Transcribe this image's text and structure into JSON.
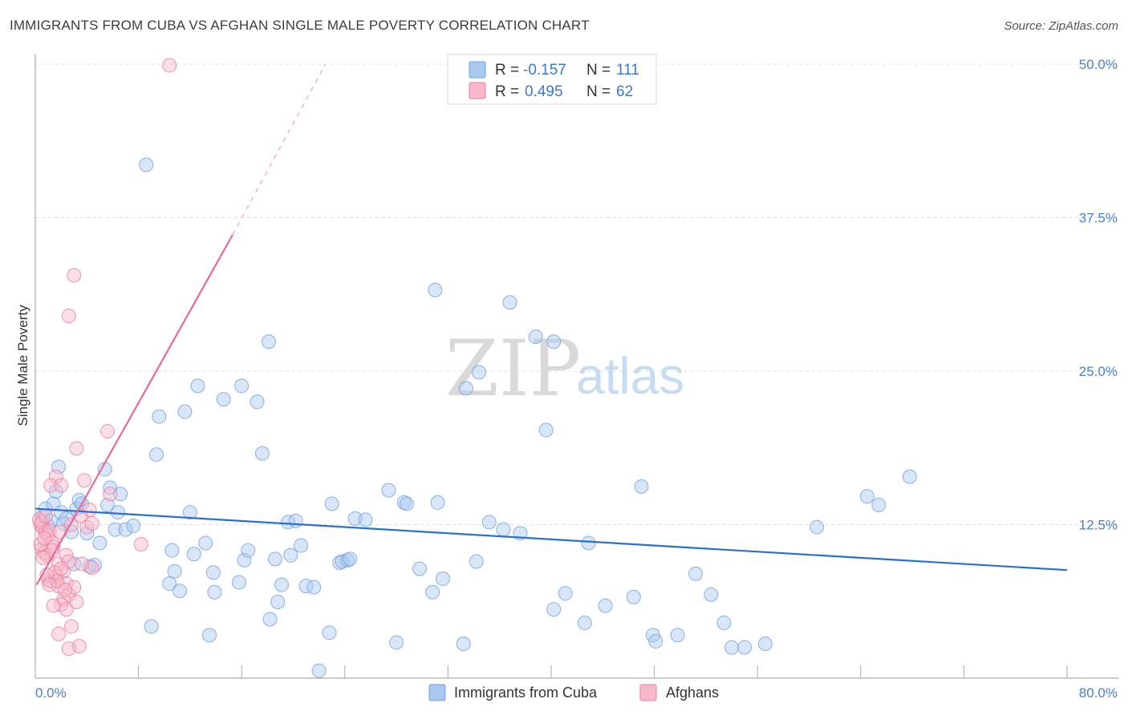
{
  "header": {
    "title": "IMMIGRANTS FROM CUBA VS AFGHAN SINGLE MALE POVERTY CORRELATION CHART",
    "source": "Source: ZipAtlas.com"
  },
  "watermark": {
    "zip": "ZIP",
    "atlas": "atlas"
  },
  "legend": {
    "r_label": "R =",
    "n_label": "N =",
    "rows": [
      {
        "r": "-0.157",
        "n": "111",
        "color": "#a9c8f0"
      },
      {
        "r": "0.495",
        "n": "62",
        "color": "#f7b9ca"
      }
    ]
  },
  "bottom_legend": {
    "items": [
      {
        "label": "Immigrants from Cuba",
        "color": "#a9c8f0"
      },
      {
        "label": "Afghans",
        "color": "#f7b9ca"
      }
    ]
  },
  "chart_data": {
    "type": "scatter",
    "title": "IMMIGRANTS FROM CUBA VS AFGHAN SINGLE MALE POVERTY CORRELATION CHART",
    "xlabel": "",
    "ylabel": "Single Male Poverty",
    "xlim": [
      0,
      80
    ],
    "ylim": [
      0,
      50
    ],
    "x_tick_labels": [
      "0.0%",
      "80.0%"
    ],
    "y_ticks": [
      12.5,
      25.0,
      37.5,
      50.0
    ],
    "y_tick_labels": [
      "12.5%",
      "25.0%",
      "37.5%",
      "50.0%"
    ],
    "grid": true,
    "legend_placement": "top-center",
    "series": [
      {
        "name": "Immigrants from Cuba",
        "color": "#6fa0e0",
        "fill": "#a9c8f0",
        "trend": {
          "x": [
            0,
            80
          ],
          "y": [
            13.8,
            8.8
          ]
        },
        "points": [
          [
            8.6,
            41.8
          ],
          [
            0.6,
            13.2
          ],
          [
            0.8,
            13.8
          ],
          [
            1.0,
            12.4
          ],
          [
            1.2,
            12.8
          ],
          [
            1.4,
            14.2
          ],
          [
            1.6,
            15.2
          ],
          [
            1.8,
            17.2
          ],
          [
            2.0,
            13.5
          ],
          [
            2.2,
            12.6
          ],
          [
            2.4,
            13.0
          ],
          [
            2.8,
            11.9
          ],
          [
            3.0,
            9.3
          ],
          [
            3.2,
            13.8
          ],
          [
            3.4,
            14.5
          ],
          [
            3.6,
            14.2
          ],
          [
            4.0,
            11.8
          ],
          [
            4.2,
            9.1
          ],
          [
            4.6,
            9.2
          ],
          [
            5.0,
            11.0
          ],
          [
            5.4,
            17.0
          ],
          [
            5.6,
            14.1
          ],
          [
            5.8,
            15.5
          ],
          [
            6.2,
            12.1
          ],
          [
            6.4,
            13.5
          ],
          [
            6.6,
            15.0
          ],
          [
            7.0,
            12.1
          ],
          [
            7.6,
            12.4
          ],
          [
            9.0,
            4.2
          ],
          [
            9.4,
            18.2
          ],
          [
            9.6,
            21.3
          ],
          [
            10.4,
            7.7
          ],
          [
            10.6,
            10.4
          ],
          [
            10.8,
            8.7
          ],
          [
            11.2,
            7.1
          ],
          [
            11.6,
            21.7
          ],
          [
            12.0,
            13.5
          ],
          [
            12.3,
            10.1
          ],
          [
            12.6,
            23.8
          ],
          [
            13.2,
            11.0
          ],
          [
            13.5,
            3.5
          ],
          [
            13.8,
            8.6
          ],
          [
            13.9,
            7.0
          ],
          [
            14.6,
            22.7
          ],
          [
            15.8,
            7.8
          ],
          [
            16.0,
            23.8
          ],
          [
            16.2,
            9.6
          ],
          [
            16.5,
            10.4
          ],
          [
            17.2,
            22.5
          ],
          [
            18.1,
            27.4
          ],
          [
            17.6,
            18.3
          ],
          [
            18.2,
            4.8
          ],
          [
            18.6,
            9.7
          ],
          [
            18.8,
            6.2
          ],
          [
            19.1,
            7.6
          ],
          [
            19.6,
            12.7
          ],
          [
            19.8,
            10.0
          ],
          [
            20.2,
            12.8
          ],
          [
            20.6,
            10.8
          ],
          [
            21.0,
            7.5
          ],
          [
            21.6,
            7.4
          ],
          [
            22.0,
            0.6
          ],
          [
            22.8,
            3.7
          ],
          [
            23.0,
            14.2
          ],
          [
            23.6,
            9.4
          ],
          [
            23.8,
            9.5
          ],
          [
            24.2,
            9.6
          ],
          [
            24.4,
            9.7
          ],
          [
            24.8,
            13.0
          ],
          [
            25.6,
            12.9
          ],
          [
            27.4,
            15.3
          ],
          [
            28.0,
            2.9
          ],
          [
            28.6,
            14.3
          ],
          [
            28.8,
            14.2
          ],
          [
            29.8,
            8.9
          ],
          [
            30.8,
            7.0
          ],
          [
            31.2,
            14.3
          ],
          [
            31.0,
            31.6
          ],
          [
            31.6,
            8.1
          ],
          [
            33.2,
            2.8
          ],
          [
            33.4,
            23.6
          ],
          [
            34.2,
            9.5
          ],
          [
            34.4,
            24.9
          ],
          [
            35.2,
            12.7
          ],
          [
            36.3,
            12.1
          ],
          [
            36.8,
            30.6
          ],
          [
            37.6,
            11.8
          ],
          [
            38.8,
            27.8
          ],
          [
            39.6,
            20.2
          ],
          [
            40.2,
            27.4
          ],
          [
            40.2,
            5.6
          ],
          [
            41.1,
            6.9
          ],
          [
            42.6,
            4.5
          ],
          [
            42.9,
            11.0
          ],
          [
            44.2,
            5.9
          ],
          [
            46.4,
            6.6
          ],
          [
            47.0,
            15.6
          ],
          [
            47.9,
            3.5
          ],
          [
            48.1,
            3.0
          ],
          [
            49.8,
            3.5
          ],
          [
            51.2,
            8.5
          ],
          [
            52.4,
            6.8
          ],
          [
            53.4,
            4.5
          ],
          [
            54.0,
            2.5
          ],
          [
            55.0,
            2.5
          ],
          [
            56.6,
            2.8
          ],
          [
            60.6,
            12.3
          ],
          [
            64.5,
            14.8
          ],
          [
            65.4,
            14.1
          ],
          [
            67.8,
            16.4
          ]
        ]
      },
      {
        "name": "Afghans",
        "color": "#ec7aa0",
        "fill": "#f7b9ca",
        "trend": {
          "x": [
            0.1,
            15.3
          ],
          "y": [
            7.6,
            36.1
          ]
        },
        "trend_dashed": {
          "x": [
            15.3,
            22.5
          ],
          "y": [
            36.1,
            50.0
          ]
        },
        "points": [
          [
            10.4,
            49.9
          ],
          [
            3.0,
            32.8
          ],
          [
            2.6,
            29.5
          ],
          [
            5.6,
            20.1
          ],
          [
            3.2,
            18.7
          ],
          [
            1.6,
            16.4
          ],
          [
            1.2,
            15.7
          ],
          [
            2.0,
            15.7
          ],
          [
            3.8,
            16.1
          ],
          [
            5.8,
            15.0
          ],
          [
            4.2,
            13.7
          ],
          [
            0.4,
            12.5
          ],
          [
            0.6,
            12.2
          ],
          [
            0.8,
            11.9
          ],
          [
            1.0,
            11.6
          ],
          [
            1.3,
            11.1
          ],
          [
            0.5,
            10.5
          ],
          [
            0.7,
            10.2
          ],
          [
            0.9,
            10.0
          ],
          [
            1.4,
            10.7
          ],
          [
            1.8,
            9.3
          ],
          [
            2.2,
            8.7
          ],
          [
            2.4,
            10.0
          ],
          [
            2.6,
            9.5
          ],
          [
            3.6,
            9.3
          ],
          [
            4.4,
            9.0
          ],
          [
            4.0,
            12.3
          ],
          [
            4.4,
            12.6
          ],
          [
            1.0,
            8.0
          ],
          [
            1.2,
            7.9
          ],
          [
            1.6,
            8.3
          ],
          [
            1.8,
            7.5
          ],
          [
            2.4,
            7.7
          ],
          [
            2.6,
            6.8
          ],
          [
            2.2,
            6.4
          ],
          [
            2.0,
            6.0
          ],
          [
            2.4,
            5.6
          ],
          [
            1.4,
            5.9
          ],
          [
            3.2,
            6.2
          ],
          [
            3.0,
            7.4
          ],
          [
            2.8,
            4.2
          ],
          [
            1.8,
            3.6
          ],
          [
            3.4,
            2.6
          ],
          [
            2.6,
            2.4
          ],
          [
            8.2,
            10.9
          ],
          [
            0.3,
            12.9
          ],
          [
            0.5,
            12.7
          ],
          [
            0.8,
            13.2
          ],
          [
            1.1,
            12.0
          ],
          [
            1.3,
            10.4
          ],
          [
            0.6,
            9.8
          ],
          [
            1.5,
            8.6
          ],
          [
            2.0,
            8.9
          ],
          [
            0.9,
            8.4
          ],
          [
            1.7,
            7.9
          ],
          [
            2.3,
            7.2
          ],
          [
            0.4,
            10.9
          ],
          [
            0.7,
            11.4
          ],
          [
            1.9,
            11.9
          ],
          [
            2.8,
            12.5
          ],
          [
            3.5,
            13.2
          ],
          [
            1.1,
            7.6
          ]
        ]
      }
    ]
  }
}
